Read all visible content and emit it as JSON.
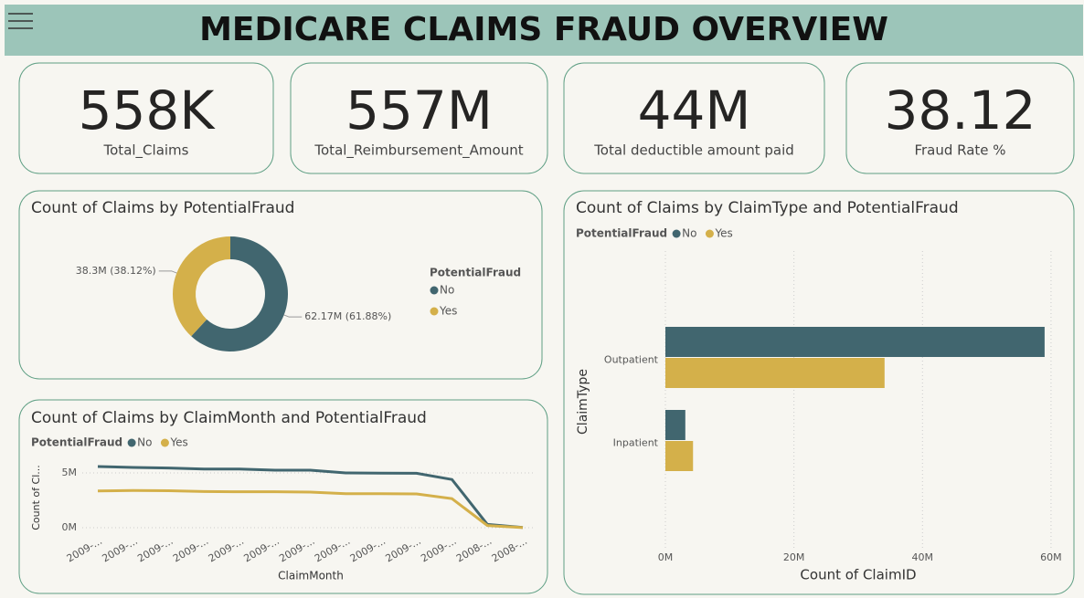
{
  "header": {
    "title": "MEDICARE CLAIMS FRAUD OVERVIEW"
  },
  "kpis": [
    {
      "value": "558K",
      "label": "Total_Claims"
    },
    {
      "value": "557M",
      "label": "Total_Reimbursement_Amount"
    },
    {
      "value": "44M",
      "label": "Total deductible amount paid"
    },
    {
      "value": "38.12",
      "label": "Fraud Rate %"
    }
  ],
  "chart_data": [
    {
      "type": "donut",
      "title": "Count of Claims by PotentialFraud",
      "legend_title": "PotentialFraud",
      "categories": [
        "No",
        "Yes"
      ],
      "colors": [
        "#41666f",
        "#d4b04a"
      ],
      "values": [
        62.17,
        38.3
      ],
      "value_labels": [
        "62.17M (61.88%)",
        "38.3M (38.12%)"
      ]
    },
    {
      "type": "line",
      "title": "Count of Claims by ClaimMonth and PotentialFraud",
      "legend_title": "PotentialFraud",
      "x_label": "ClaimMonth",
      "y_label": "Count of Cl...",
      "categories": [
        "2009-...",
        "2009-...",
        "2009-...",
        "2009-...",
        "2009-...",
        "2009-...",
        "2009-...",
        "2009-...",
        "2009-...",
        "2009-...",
        "2009-...",
        "2008-...",
        "2008-..."
      ],
      "series": [
        {
          "name": "No",
          "color": "#41666f",
          "values": [
            5.58,
            5.5,
            5.45,
            5.35,
            5.35,
            5.25,
            5.25,
            5.0,
            4.98,
            4.97,
            4.4,
            0.3,
            0.02
          ]
        },
        {
          "name": "Yes",
          "color": "#d4b04a",
          "values": [
            3.35,
            3.4,
            3.38,
            3.3,
            3.28,
            3.28,
            3.25,
            3.1,
            3.1,
            3.08,
            2.65,
            0.2,
            0.01
          ]
        }
      ],
      "ylim": [
        0,
        6
      ],
      "yticks": [
        {
          "value": 0,
          "label": "0M"
        },
        {
          "value": 5,
          "label": "5M"
        }
      ],
      "grid": true
    },
    {
      "type": "bar",
      "orientation": "horizontal",
      "title": "Count of Claims by ClaimType and PotentialFraud",
      "legend_title": "PotentialFraud",
      "x_label": "Count of ClaimID",
      "y_label": "ClaimType",
      "categories": [
        "Outpatient",
        "Inpatient"
      ],
      "series": [
        {
          "name": "No",
          "color": "#41666f",
          "values": [
            59.0,
            3.1
          ]
        },
        {
          "name": "Yes",
          "color": "#d4b04a",
          "values": [
            34.1,
            4.3
          ]
        }
      ],
      "xlim": [
        0,
        62
      ],
      "xticks": [
        {
          "value": 0,
          "label": "0M"
        },
        {
          "value": 20,
          "label": "20M"
        },
        {
          "value": 40,
          "label": "40M"
        },
        {
          "value": 60,
          "label": "60M"
        }
      ],
      "grid": true
    }
  ]
}
